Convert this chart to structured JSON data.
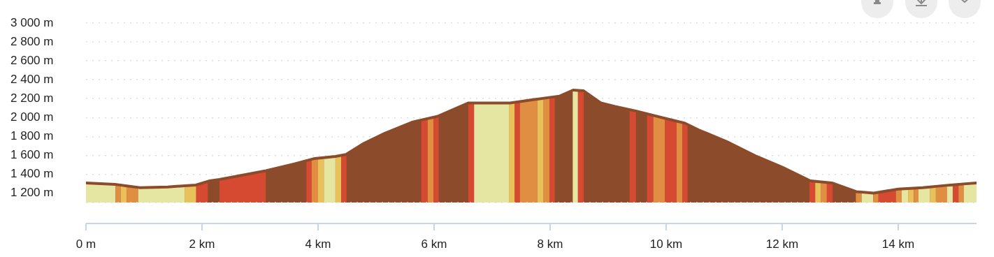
{
  "chart_data": {
    "type": "area",
    "x": [
      0,
      0.5,
      0.93,
      1.41,
      1.89,
      2.13,
      2.3,
      3.1,
      3.58,
      3.94,
      4.3,
      4.48,
      4.78,
      5.14,
      5.63,
      6.05,
      6.59,
      6.95,
      7.31,
      7.8,
      8.16,
      8.4,
      8.58,
      8.88,
      9.12,
      9.49,
      9.85,
      10.33,
      10.57,
      11.05,
      11.54,
      12.01,
      12.49,
      12.86,
      13.28,
      13.58,
      14.0,
      14.42,
      14.9,
      15.35
    ],
    "series": [
      {
        "color": "#8c4b2a",
        "values": [
          1315,
          1300,
          1265,
          1272,
          1293,
          1336,
          1351,
          1444,
          1515,
          1573,
          1595,
          1616,
          1731,
          1838,
          1960,
          2018,
          2161,
          2161,
          2161,
          2204,
          2233,
          2298,
          2290,
          2161,
          2125,
          2075,
          2018,
          1946,
          1874,
          1752,
          1602,
          1480,
          1336,
          1315,
          1222,
          1207,
          1250,
          1265,
          1293,
          1315
        ]
      }
    ],
    "bands": [
      {
        "axis": "x",
        "from": 0,
        "to": 0.51,
        "color": "#e6e6a3"
      },
      {
        "axis": "x",
        "from": 0.51,
        "to": 0.6,
        "color": "#e08e42"
      },
      {
        "axis": "x",
        "from": 0.6,
        "to": 0.7,
        "color": "#e8c15a"
      },
      {
        "axis": "x",
        "from": 0.7,
        "to": 0.9,
        "color": "#e08e42"
      },
      {
        "axis": "x",
        "from": 0.9,
        "to": 1.7,
        "color": "#e6e6a3"
      },
      {
        "axis": "x",
        "from": 1.7,
        "to": 1.9,
        "color": "#e8c15a"
      },
      {
        "axis": "x",
        "from": 1.9,
        "to": 2.1,
        "color": "#d54a31"
      },
      {
        "axis": "x",
        "from": 2.3,
        "to": 3.1,
        "color": "#d54a31"
      },
      {
        "axis": "x",
        "from": 3.8,
        "to": 3.89,
        "color": "#d54a31"
      },
      {
        "axis": "x",
        "from": 3.89,
        "to": 4.0,
        "color": "#e08e42"
      },
      {
        "axis": "x",
        "from": 4.0,
        "to": 4.1,
        "color": "#e8c15a"
      },
      {
        "axis": "x",
        "from": 4.1,
        "to": 4.3,
        "color": "#e6e6a3"
      },
      {
        "axis": "x",
        "from": 4.3,
        "to": 4.4,
        "color": "#e8c15a"
      },
      {
        "axis": "x",
        "from": 4.4,
        "to": 4.49,
        "color": "#d54a31"
      },
      {
        "axis": "x",
        "from": 5.78,
        "to": 5.89,
        "color": "#d54a31"
      },
      {
        "axis": "x",
        "from": 5.89,
        "to": 5.99,
        "color": "#e08e42"
      },
      {
        "axis": "x",
        "from": 5.99,
        "to": 6.08,
        "color": "#d54a31"
      },
      {
        "axis": "x",
        "from": 6.59,
        "to": 6.69,
        "color": "#d54a31"
      },
      {
        "axis": "x",
        "from": 6.69,
        "to": 7.29,
        "color": "#e6e6a3"
      },
      {
        "axis": "x",
        "from": 7.29,
        "to": 7.39,
        "color": "#e8c15a"
      },
      {
        "axis": "x",
        "from": 7.39,
        "to": 7.48,
        "color": "#d54a31"
      },
      {
        "axis": "x",
        "from": 7.48,
        "to": 7.78,
        "color": "#e08e42"
      },
      {
        "axis": "x",
        "from": 7.78,
        "to": 7.88,
        "color": "#e8c15a"
      },
      {
        "axis": "x",
        "from": 7.88,
        "to": 7.99,
        "color": "#e08e42"
      },
      {
        "axis": "x",
        "from": 7.99,
        "to": 8.08,
        "color": "#d54a31"
      },
      {
        "axis": "x",
        "from": 8.39,
        "to": 8.48,
        "color": "#e6e6a3"
      },
      {
        "axis": "x",
        "from": 8.48,
        "to": 8.58,
        "color": "#d54a31"
      },
      {
        "axis": "x",
        "from": 9.37,
        "to": 9.48,
        "color": "#d54a31"
      },
      {
        "axis": "x",
        "from": 9.67,
        "to": 9.78,
        "color": "#d54a31"
      },
      {
        "axis": "x",
        "from": 9.78,
        "to": 9.98,
        "color": "#e08e42"
      },
      {
        "axis": "x",
        "from": 9.98,
        "to": 10.18,
        "color": "#d54a31"
      },
      {
        "axis": "x",
        "from": 10.18,
        "to": 10.28,
        "color": "#e08e42"
      },
      {
        "axis": "x",
        "from": 10.28,
        "to": 10.37,
        "color": "#d54a31"
      },
      {
        "axis": "x",
        "from": 12.47,
        "to": 12.57,
        "color": "#d54a31"
      },
      {
        "axis": "x",
        "from": 12.57,
        "to": 12.67,
        "color": "#e8c15a"
      },
      {
        "axis": "x",
        "from": 12.67,
        "to": 12.77,
        "color": "#e08e42"
      },
      {
        "axis": "x",
        "from": 12.77,
        "to": 12.87,
        "color": "#d54a31"
      },
      {
        "axis": "x",
        "from": 13.27,
        "to": 13.37,
        "color": "#e08e42"
      },
      {
        "axis": "x",
        "from": 13.37,
        "to": 13.57,
        "color": "#e6e6a3"
      },
      {
        "axis": "x",
        "from": 13.57,
        "to": 13.66,
        "color": "#e08e42"
      },
      {
        "axis": "x",
        "from": 13.66,
        "to": 13.96,
        "color": "#d54a31"
      },
      {
        "axis": "x",
        "from": 13.96,
        "to": 14.06,
        "color": "#e08e42"
      },
      {
        "axis": "x",
        "from": 14.06,
        "to": 14.17,
        "color": "#e6e6a3"
      },
      {
        "axis": "x",
        "from": 14.17,
        "to": 14.27,
        "color": "#e8c15a"
      },
      {
        "axis": "x",
        "from": 14.27,
        "to": 14.35,
        "color": "#e08e42"
      },
      {
        "axis": "x",
        "from": 14.35,
        "to": 14.55,
        "color": "#e6e6a3"
      },
      {
        "axis": "x",
        "from": 14.55,
        "to": 14.65,
        "color": "#e8c15a"
      },
      {
        "axis": "x",
        "from": 14.65,
        "to": 14.84,
        "color": "#e08e42"
      },
      {
        "axis": "x",
        "from": 14.84,
        "to": 14.94,
        "color": "#e6e6a3"
      },
      {
        "axis": "x",
        "from": 14.94,
        "to": 15.04,
        "color": "#d54a31"
      },
      {
        "axis": "x",
        "from": 15.04,
        "to": 15.13,
        "color": "#e08e42"
      },
      {
        "axis": "x",
        "from": 15.13,
        "to": 15.35,
        "color": "#e6e6a3"
      }
    ],
    "xlim": [
      0,
      15.35
    ],
    "xticks": [
      {
        "value": 0,
        "label": "0 m"
      },
      {
        "value": 2,
        "label": "2 km"
      },
      {
        "value": 4,
        "label": "4 km"
      },
      {
        "value": 6,
        "label": "6 km"
      },
      {
        "value": 8,
        "label": "8 km"
      },
      {
        "value": 10,
        "label": "10 km"
      },
      {
        "value": 12,
        "label": "12 km"
      },
      {
        "value": 14,
        "label": "14 km"
      }
    ],
    "ylim": [
      1100,
      3000
    ],
    "yticks": [
      {
        "value": 1200,
        "label": "1 200 m"
      },
      {
        "value": 1400,
        "label": "1 400 m"
      },
      {
        "value": 1600,
        "label": "1 600 m"
      },
      {
        "value": 1800,
        "label": "1 800 m"
      },
      {
        "value": 2000,
        "label": "2 000 m"
      },
      {
        "value": 2200,
        "label": "2 200 m"
      },
      {
        "value": 2400,
        "label": "2 400 m"
      },
      {
        "value": 2600,
        "label": "2 600 m"
      },
      {
        "value": 2800,
        "label": "2 800 m"
      },
      {
        "value": 3000,
        "label": "3 000 m"
      }
    ],
    "grid": "y",
    "legend": false
  }
}
